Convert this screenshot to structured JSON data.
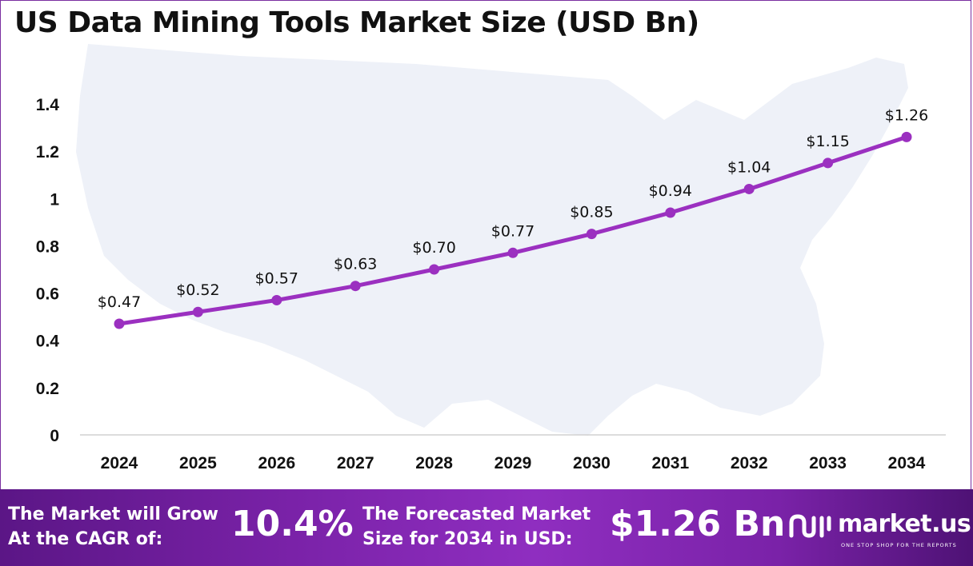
{
  "page": {
    "title": "US Data Mining Tools Market Size (USD Bn)"
  },
  "chart_data": {
    "type": "line",
    "title": "US Data Mining Tools Market Size (USD Bn)",
    "xlabel": "",
    "ylabel": "",
    "categories": [
      "2024",
      "2025",
      "2026",
      "2027",
      "2028",
      "2029",
      "2030",
      "2031",
      "2032",
      "2033",
      "2034"
    ],
    "series": [
      {
        "values": [
          0.47,
          0.52,
          0.57,
          0.63,
          0.7,
          0.77,
          0.85,
          0.94,
          1.04,
          1.15,
          1.26
        ],
        "labels": [
          "$0.47",
          "$0.52",
          "$0.57",
          "$0.63",
          "$0.70",
          "$0.77",
          "$0.85",
          "$0.94",
          "$1.04",
          "$1.15",
          "$1.26"
        ],
        "color": "#9b30c0"
      }
    ],
    "ylim": [
      0,
      1.4
    ],
    "yticks": [
      0,
      0.2,
      0.4,
      0.6,
      0.8,
      1,
      1.2,
      1.4
    ],
    "ytick_labels": [
      "0",
      "0.2",
      "0.4",
      "0.6",
      "0.8",
      "1",
      "1.2",
      "1.4"
    ],
    "grid": false,
    "legend": "none"
  },
  "footer": {
    "cagr_label": "The Market will Grow\nAt the CAGR of:",
    "cagr_value": "10.4%",
    "forecast_label": "The Forecasted Market\nSize for 2034 in USD:",
    "forecast_value": "$1.26 Bn",
    "logo_text": "market.us",
    "logo_tagline": "ONE STOP SHOP FOR THE REPORTS",
    "background_color": "#7a22a8"
  },
  "colors": {
    "line": "#9b30c0",
    "map": "#eef1f8",
    "title": "#111111"
  }
}
